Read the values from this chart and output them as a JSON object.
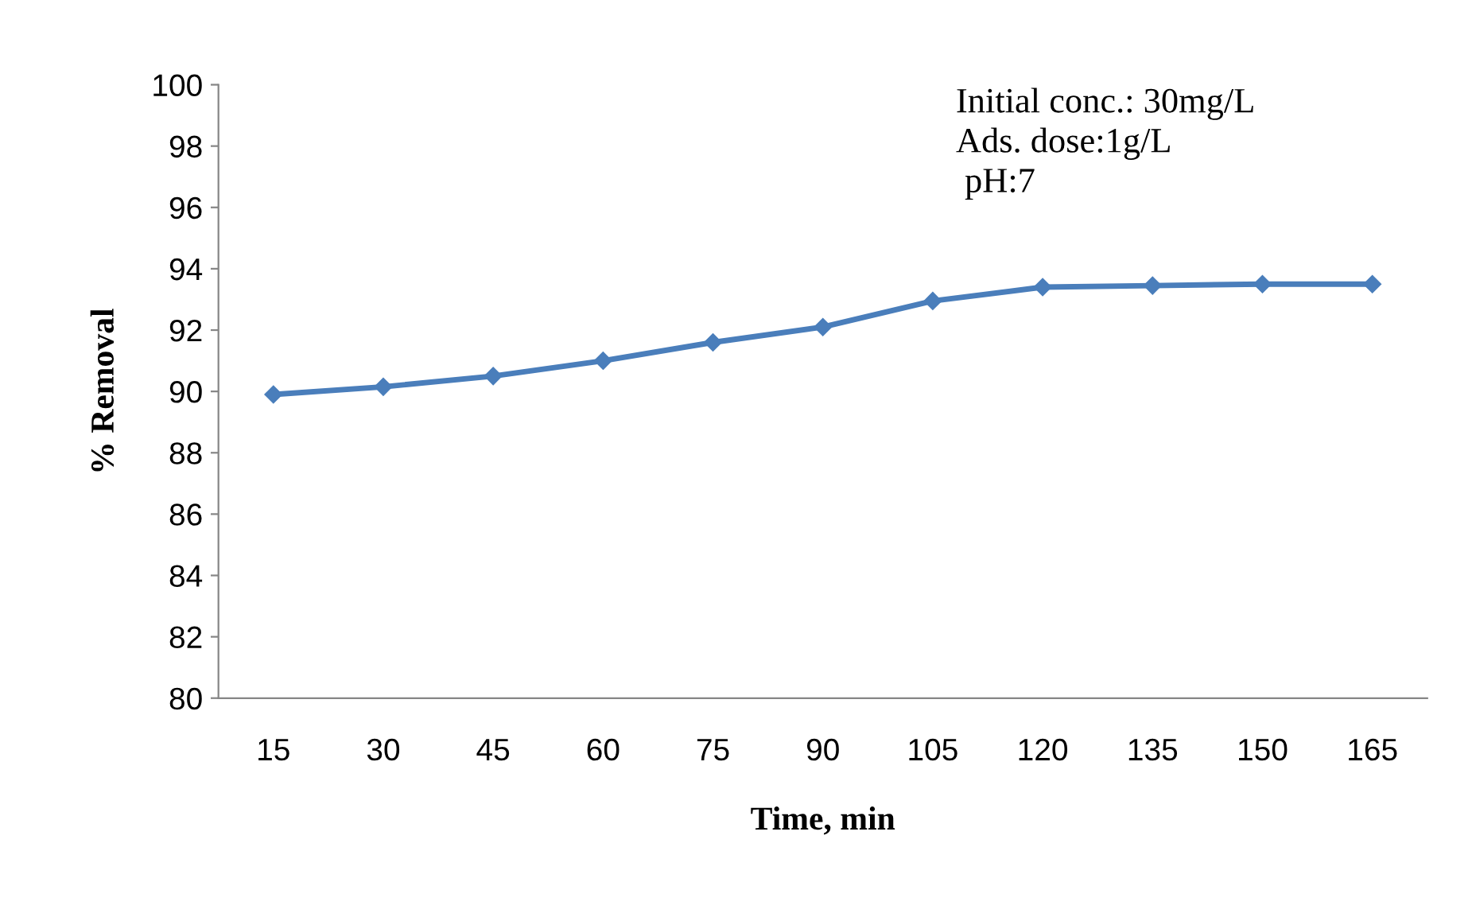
{
  "chart_data": {
    "type": "line",
    "xlabel": "Time, min",
    "ylabel": "% Removal",
    "categories": [
      "15",
      "30",
      "45",
      "60",
      "75",
      "90",
      "105",
      "120",
      "135",
      "150",
      "165"
    ],
    "series": [
      {
        "color": "#4a7ebb",
        "values": [
          89.9,
          90.15,
          90.5,
          91.0,
          91.6,
          92.1,
          92.95,
          93.4,
          93.45,
          93.5,
          93.5
        ]
      }
    ],
    "ylim": [
      80,
      100
    ],
    "yticks": [
      80,
      82,
      84,
      86,
      88,
      90,
      92,
      94,
      96,
      98,
      100
    ],
    "annotations": [
      "Initial conc.: 30mg/L",
      "Ads. dose:1g/L",
      " pH:7"
    ],
    "marker": "diamond",
    "line_style": "solid",
    "grid": false,
    "legend": false
  }
}
